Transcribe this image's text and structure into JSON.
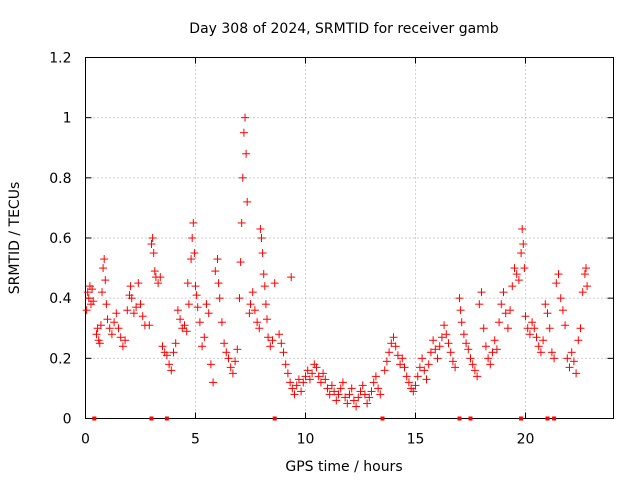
{
  "chart_data": {
    "type": "scatter",
    "title": "Day 308 of 2024, SRMTID for receiver gamb",
    "xlabel": "GPS time / hours",
    "ylabel": "SRMTID / TECUs",
    "xlim": [
      0,
      24
    ],
    "ylim": [
      0,
      1.2
    ],
    "xticks": [
      0,
      5,
      10,
      15,
      20
    ],
    "yticks": [
      0,
      0.2,
      0.4,
      0.6,
      0.8,
      1,
      1.2
    ],
    "xtick_labels": [
      "0",
      "5",
      "10",
      "15",
      "20"
    ],
    "ytick_labels": [
      "0",
      "0.2",
      "0.4",
      "0.6",
      "0.8",
      "1",
      "1.2"
    ],
    "grid": true,
    "marker": "plus",
    "color": "#ff0000",
    "axis_markers_x": [
      0.4,
      3.0,
      3.7,
      8.6,
      13.5,
      17.0,
      17.5,
      19.8,
      21.0,
      21.3
    ],
    "series": [
      {
        "name": "SRMTID",
        "points": [
          [
            0.05,
            0.36
          ],
          [
            0.1,
            0.42
          ],
          [
            0.15,
            0.4
          ],
          [
            0.2,
            0.44
          ],
          [
            0.25,
            0.38
          ],
          [
            0.3,
            0.43
          ],
          [
            0.35,
            0.39
          ],
          [
            0.5,
            0.28
          ],
          [
            0.55,
            0.3
          ],
          [
            0.6,
            0.26
          ],
          [
            0.65,
            0.25
          ],
          [
            0.7,
            0.31
          ],
          [
            0.75,
            0.42
          ],
          [
            0.8,
            0.5
          ],
          [
            0.85,
            0.53
          ],
          [
            0.9,
            0.46
          ],
          [
            0.95,
            0.38
          ],
          [
            1.0,
            0.33
          ],
          [
            1.1,
            0.3
          ],
          [
            1.2,
            0.28
          ],
          [
            1.3,
            0.32
          ],
          [
            1.4,
            0.35
          ],
          [
            1.5,
            0.3
          ],
          [
            1.6,
            0.27
          ],
          [
            1.7,
            0.24
          ],
          [
            1.8,
            0.26
          ],
          [
            1.9,
            0.36
          ],
          [
            2.0,
            0.41
          ],
          [
            2.05,
            0.44
          ],
          [
            2.1,
            0.4
          ],
          [
            2.2,
            0.35
          ],
          [
            2.3,
            0.37
          ],
          [
            2.4,
            0.45
          ],
          [
            2.5,
            0.38
          ],
          [
            2.6,
            0.34
          ],
          [
            2.7,
            0.31
          ],
          [
            2.9,
            0.31
          ],
          [
            3.0,
            0.58
          ],
          [
            3.05,
            0.6
          ],
          [
            3.1,
            0.55
          ],
          [
            3.15,
            0.49
          ],
          [
            3.2,
            0.47
          ],
          [
            3.3,
            0.45
          ],
          [
            3.4,
            0.47
          ],
          [
            3.5,
            0.24
          ],
          [
            3.6,
            0.22
          ],
          [
            3.7,
            0.21
          ],
          [
            3.8,
            0.18
          ],
          [
            3.9,
            0.16
          ],
          [
            4.0,
            0.22
          ],
          [
            4.1,
            0.25
          ],
          [
            4.2,
            0.36
          ],
          [
            4.3,
            0.33
          ],
          [
            4.4,
            0.3
          ],
          [
            4.5,
            0.31
          ],
          [
            4.6,
            0.29
          ],
          [
            4.65,
            0.45
          ],
          [
            4.7,
            0.38
          ],
          [
            4.8,
            0.53
          ],
          [
            4.85,
            0.6
          ],
          [
            4.9,
            0.65
          ],
          [
            4.95,
            0.55
          ],
          [
            5.0,
            0.44
          ],
          [
            5.05,
            0.41
          ],
          [
            5.1,
            0.37
          ],
          [
            5.2,
            0.32
          ],
          [
            5.3,
            0.24
          ],
          [
            5.4,
            0.27
          ],
          [
            5.5,
            0.38
          ],
          [
            5.6,
            0.35
          ],
          [
            5.7,
            0.18
          ],
          [
            5.8,
            0.12
          ],
          [
            5.9,
            0.49
          ],
          [
            6.0,
            0.53
          ],
          [
            6.05,
            0.45
          ],
          [
            6.1,
            0.4
          ],
          [
            6.2,
            0.32
          ],
          [
            6.3,
            0.25
          ],
          [
            6.4,
            0.22
          ],
          [
            6.5,
            0.2
          ],
          [
            6.6,
            0.17
          ],
          [
            6.7,
            0.15
          ],
          [
            6.8,
            0.19
          ],
          [
            6.9,
            0.23
          ],
          [
            7.0,
            0.4
          ],
          [
            7.05,
            0.52
          ],
          [
            7.1,
            0.65
          ],
          [
            7.15,
            0.8
          ],
          [
            7.2,
            0.95
          ],
          [
            7.25,
            1.0
          ],
          [
            7.3,
            0.88
          ],
          [
            7.35,
            0.72
          ],
          [
            7.45,
            0.35
          ],
          [
            7.5,
            0.38
          ],
          [
            7.6,
            0.42
          ],
          [
            7.7,
            0.36
          ],
          [
            7.8,
            0.32
          ],
          [
            7.9,
            0.3
          ],
          [
            7.95,
            0.63
          ],
          [
            8.0,
            0.6
          ],
          [
            8.05,
            0.55
          ],
          [
            8.1,
            0.48
          ],
          [
            8.15,
            0.44
          ],
          [
            8.2,
            0.38
          ],
          [
            8.25,
            0.33
          ],
          [
            8.3,
            0.27
          ],
          [
            8.4,
            0.24
          ],
          [
            8.5,
            0.26
          ],
          [
            8.6,
            0.45
          ],
          [
            8.8,
            0.28
          ],
          [
            8.9,
            0.25
          ],
          [
            9.0,
            0.22
          ],
          [
            9.1,
            0.18
          ],
          [
            9.2,
            0.15
          ],
          [
            9.3,
            0.12
          ],
          [
            9.35,
            0.47
          ],
          [
            9.4,
            0.1
          ],
          [
            9.5,
            0.08
          ],
          [
            9.6,
            0.11
          ],
          [
            9.7,
            0.13
          ],
          [
            9.8,
            0.09
          ],
          [
            9.9,
            0.12
          ],
          [
            10.0,
            0.14
          ],
          [
            10.1,
            0.16
          ],
          [
            10.2,
            0.13
          ],
          [
            10.3,
            0.15
          ],
          [
            10.4,
            0.18
          ],
          [
            10.5,
            0.17
          ],
          [
            10.6,
            0.14
          ],
          [
            10.7,
            0.12
          ],
          [
            10.8,
            0.15
          ],
          [
            10.9,
            0.13
          ],
          [
            11.0,
            0.1
          ],
          [
            11.1,
            0.08
          ],
          [
            11.2,
            0.11
          ],
          [
            11.3,
            0.09
          ],
          [
            11.4,
            0.06
          ],
          [
            11.5,
            0.08
          ],
          [
            11.6,
            0.1
          ],
          [
            11.7,
            0.12
          ],
          [
            11.8,
            0.07
          ],
          [
            11.9,
            0.05
          ],
          [
            12.0,
            0.08
          ],
          [
            12.1,
            0.1
          ],
          [
            12.2,
            0.06
          ],
          [
            12.3,
            0.04
          ],
          [
            12.4,
            0.07
          ],
          [
            12.5,
            0.09
          ],
          [
            12.6,
            0.11
          ],
          [
            12.7,
            0.08
          ],
          [
            12.8,
            0.05
          ],
          [
            12.9,
            0.07
          ],
          [
            13.0,
            0.09
          ],
          [
            13.1,
            0.12
          ],
          [
            13.2,
            0.14
          ],
          [
            13.3,
            0.1
          ],
          [
            13.4,
            0.08
          ],
          [
            13.6,
            0.16
          ],
          [
            13.7,
            0.19
          ],
          [
            13.8,
            0.22
          ],
          [
            13.9,
            0.25
          ],
          [
            14.0,
            0.27
          ],
          [
            14.1,
            0.24
          ],
          [
            14.2,
            0.21
          ],
          [
            14.3,
            0.18
          ],
          [
            14.4,
            0.2
          ],
          [
            14.5,
            0.17
          ],
          [
            14.6,
            0.14
          ],
          [
            14.7,
            0.12
          ],
          [
            14.8,
            0.1
          ],
          [
            14.9,
            0.09
          ],
          [
            15.0,
            0.11
          ],
          [
            15.1,
            0.14
          ],
          [
            15.2,
            0.17
          ],
          [
            15.3,
            0.2
          ],
          [
            15.4,
            0.16
          ],
          [
            15.5,
            0.13
          ],
          [
            15.6,
            0.18
          ],
          [
            15.7,
            0.22
          ],
          [
            15.8,
            0.26
          ],
          [
            15.9,
            0.23
          ],
          [
            16.0,
            0.2
          ],
          [
            16.1,
            0.24
          ],
          [
            16.2,
            0.27
          ],
          [
            16.3,
            0.31
          ],
          [
            16.4,
            0.28
          ],
          [
            16.5,
            0.25
          ],
          [
            16.6,
            0.22
          ],
          [
            16.7,
            0.19
          ],
          [
            16.8,
            0.17
          ],
          [
            17.0,
            0.4
          ],
          [
            17.05,
            0.36
          ],
          [
            17.1,
            0.32
          ],
          [
            17.2,
            0.28
          ],
          [
            17.3,
            0.25
          ],
          [
            17.4,
            0.23
          ],
          [
            17.5,
            0.2
          ],
          [
            17.6,
            0.18
          ],
          [
            17.7,
            0.16
          ],
          [
            17.8,
            0.14
          ],
          [
            17.9,
            0.38
          ],
          [
            18.0,
            0.42
          ],
          [
            18.1,
            0.3
          ],
          [
            18.2,
            0.24
          ],
          [
            18.3,
            0.2
          ],
          [
            18.4,
            0.18
          ],
          [
            18.5,
            0.22
          ],
          [
            18.6,
            0.26
          ],
          [
            18.7,
            0.23
          ],
          [
            18.8,
            0.32
          ],
          [
            18.9,
            0.38
          ],
          [
            19.0,
            0.42
          ],
          [
            19.1,
            0.35
          ],
          [
            19.2,
            0.3
          ],
          [
            19.3,
            0.36
          ],
          [
            19.4,
            0.44
          ],
          [
            19.5,
            0.5
          ],
          [
            19.6,
            0.48
          ],
          [
            19.7,
            0.46
          ],
          [
            19.8,
            0.55
          ],
          [
            19.85,
            0.63
          ],
          [
            19.9,
            0.58
          ],
          [
            19.95,
            0.5
          ],
          [
            20.0,
            0.34
          ],
          [
            20.1,
            0.3
          ],
          [
            20.2,
            0.28
          ],
          [
            20.3,
            0.32
          ],
          [
            20.4,
            0.3
          ],
          [
            20.5,
            0.27
          ],
          [
            20.6,
            0.24
          ],
          [
            20.7,
            0.22
          ],
          [
            20.8,
            0.26
          ],
          [
            20.9,
            0.38
          ],
          [
            21.0,
            0.35
          ],
          [
            21.1,
            0.3
          ],
          [
            21.2,
            0.22
          ],
          [
            21.3,
            0.2
          ],
          [
            21.4,
            0.45
          ],
          [
            21.5,
            0.48
          ],
          [
            21.6,
            0.4
          ],
          [
            21.7,
            0.36
          ],
          [
            21.8,
            0.31
          ],
          [
            21.9,
            0.2
          ],
          [
            22.0,
            0.17
          ],
          [
            22.1,
            0.22
          ],
          [
            22.2,
            0.19
          ],
          [
            22.3,
            0.15
          ],
          [
            22.4,
            0.26
          ],
          [
            22.5,
            0.3
          ],
          [
            22.6,
            0.42
          ],
          [
            22.7,
            0.48
          ],
          [
            22.75,
            0.5
          ],
          [
            22.8,
            0.44
          ]
        ]
      }
    ]
  }
}
